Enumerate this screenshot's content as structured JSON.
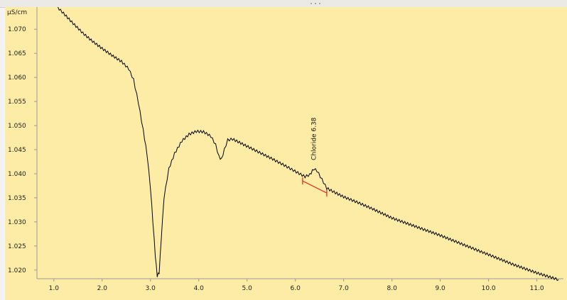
{
  "chart_data": {
    "type": "line",
    "title": "",
    "xlabel": "",
    "ylabel": "µS/cm",
    "xlim": [
      0.65,
      11.55
    ],
    "ylim": [
      1.0182,
      1.0746
    ],
    "x_ticks": [
      "1.0",
      "2.0",
      "3.0",
      "4.0",
      "5.0",
      "6.0",
      "7.0",
      "8.0",
      "9.0",
      "10.0",
      "11.0"
    ],
    "y_ticks": [
      "1.020",
      "1.025",
      "1.030",
      "1.035",
      "1.040",
      "1.045",
      "1.050",
      "1.055",
      "1.060",
      "1.065",
      "1.070"
    ],
    "grid": false,
    "series": [
      {
        "color": "#000000",
        "noise_amplitude": 0.0005,
        "points": [
          [
            1.08,
            1.0745
          ],
          [
            1.2,
            1.0733
          ],
          [
            1.4,
            1.0712
          ],
          [
            1.6,
            1.0692
          ],
          [
            1.8,
            1.0675
          ],
          [
            2.0,
            1.066
          ],
          [
            2.2,
            1.0646
          ],
          [
            2.4,
            1.0633
          ],
          [
            2.55,
            1.0618
          ],
          [
            2.65,
            1.0595
          ],
          [
            2.75,
            1.0548
          ],
          [
            2.85,
            1.049
          ],
          [
            2.93,
            1.044
          ],
          [
            3.0,
            1.037
          ],
          [
            3.05,
            1.03
          ],
          [
            3.1,
            1.023
          ],
          [
            3.14,
            1.0188
          ],
          [
            3.18,
            1.0195
          ],
          [
            3.22,
            1.026
          ],
          [
            3.28,
            1.035
          ],
          [
            3.38,
            1.041
          ],
          [
            3.5,
            1.0442
          ],
          [
            3.65,
            1.0468
          ],
          [
            3.8,
            1.0482
          ],
          [
            3.95,
            1.0488
          ],
          [
            4.1,
            1.0487
          ],
          [
            4.25,
            1.0478
          ],
          [
            4.35,
            1.046
          ],
          [
            4.42,
            1.0435
          ],
          [
            4.47,
            1.043
          ],
          [
            4.53,
            1.045
          ],
          [
            4.6,
            1.047
          ],
          [
            4.7,
            1.0472
          ],
          [
            4.9,
            1.0462
          ],
          [
            5.2,
            1.0447
          ],
          [
            5.5,
            1.0432
          ],
          [
            5.8,
            1.0416
          ],
          [
            6.05,
            1.0402
          ],
          [
            6.2,
            1.0394
          ],
          [
            6.3,
            1.0398
          ],
          [
            6.38,
            1.041
          ],
          [
            6.45,
            1.0406
          ],
          [
            6.55,
            1.0388
          ],
          [
            6.65,
            1.037
          ],
          [
            6.8,
            1.0362
          ],
          [
            7.0,
            1.0352
          ],
          [
            7.3,
            1.034
          ],
          [
            7.6,
            1.0327
          ],
          [
            8.0,
            1.0308
          ],
          [
            8.5,
            1.029
          ],
          [
            9.0,
            1.0272
          ],
          [
            9.5,
            1.0252
          ],
          [
            10.0,
            1.0232
          ],
          [
            10.5,
            1.0212
          ],
          [
            11.0,
            1.0194
          ],
          [
            11.45,
            1.018
          ]
        ]
      }
    ],
    "annotations": [
      {
        "label": "Chloride 6.38",
        "peak_x": 6.38,
        "baseline_start": [
          6.15,
          1.0385
        ],
        "baseline_end": [
          6.65,
          1.036
        ],
        "baseline_color": "#e02020"
      }
    ]
  }
}
